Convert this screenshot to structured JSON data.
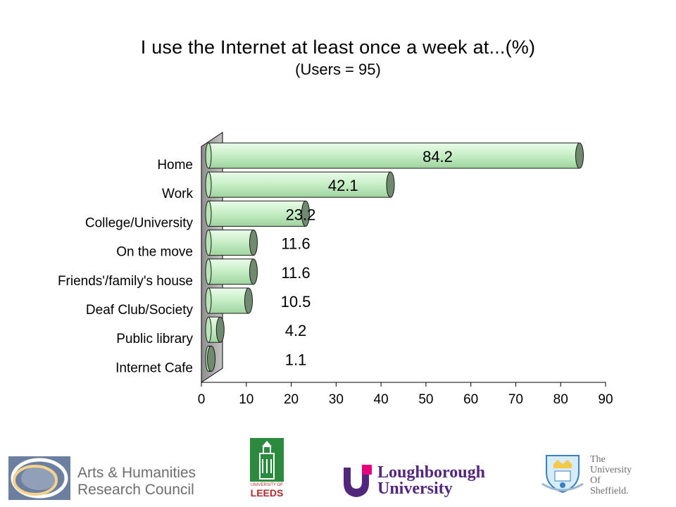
{
  "chart_data": {
    "type": "bar",
    "orientation": "horizontal",
    "title": "I use the Internet at least once a week at...(%)",
    "subtitle": "(Users = 95)",
    "categories": [
      "Home",
      "Work",
      "College/University",
      "On the move",
      "Friends'/family's house",
      "Deaf Club/Society",
      "Public library",
      "Internet Cafe"
    ],
    "values": [
      84.2,
      42.1,
      23.2,
      11.6,
      11.6,
      10.5,
      4.2,
      1.1
    ],
    "data_labels": [
      "84.2",
      "42.1",
      "23.2",
      "11.6",
      "11.6",
      "10.5",
      "4.2",
      "1.1"
    ],
    "xlim": [
      0,
      90
    ],
    "xticks": [
      0,
      10,
      20,
      30,
      40,
      50,
      60,
      70,
      80,
      90
    ],
    "xlabel": "",
    "ylabel": "",
    "grid": false,
    "legend": "none",
    "bar_color": "#c9f0c9",
    "bar_cap_color": "#6f8a6f",
    "wall_color": "#a8a8a8"
  },
  "logos": {
    "ahrc": {
      "line1": "Arts & Humanities",
      "line2": "Research Council"
    },
    "leeds": {
      "line1": "UNIVERSITY OF",
      "line2": "LEEDS"
    },
    "loughborough": {
      "line1": "Loughborough",
      "line2": "University"
    },
    "sheffield": {
      "line1": "The",
      "line2": "University",
      "line3": "Of",
      "line4": "Sheffield."
    }
  }
}
